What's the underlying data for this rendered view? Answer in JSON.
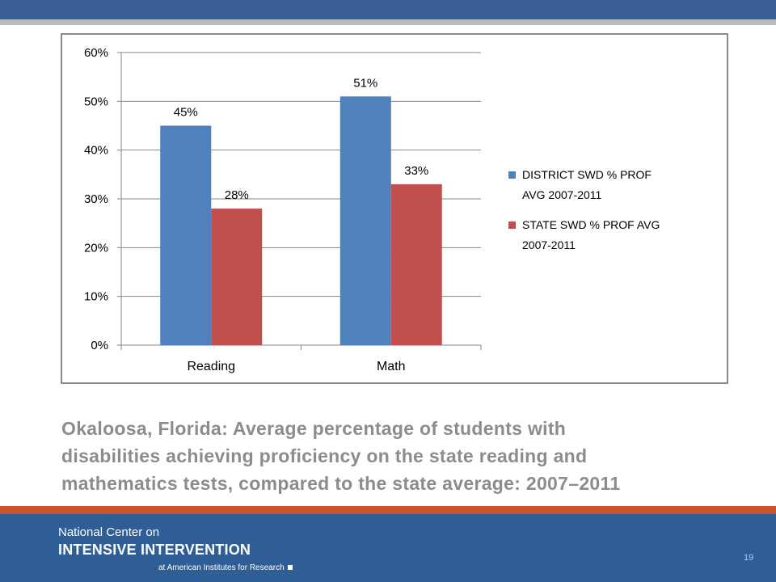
{
  "chart_data": {
    "type": "bar",
    "categories": [
      "Reading",
      "Math"
    ],
    "series": [
      {
        "name": "DISTRICT SWD % PROF AVG 2007-2011",
        "legend_lines": [
          "DISTRICT SWD % PROF",
          "AVG 2007-2011"
        ],
        "values": [
          45,
          51
        ],
        "labels": [
          "45%",
          "51%"
        ],
        "color": "#4f81bd"
      },
      {
        "name": "STATE SWD % PROF AVG 2007-2011",
        "legend_lines": [
          "STATE SWD % PROF AVG",
          "2007-2011"
        ],
        "values": [
          28,
          33
        ],
        "labels": [
          "28%",
          "33%"
        ],
        "color": "#c0504d"
      }
    ],
    "ylim": [
      0,
      60
    ],
    "yticks": [
      0,
      10,
      20,
      30,
      40,
      50,
      60
    ],
    "ytick_labels": [
      "0%",
      "10%",
      "20%",
      "30%",
      "40%",
      "50%",
      "60%"
    ],
    "grid": true,
    "legend_position": "right"
  },
  "caption": {
    "line1": "Okaloosa, Florida: Average percentage of students with",
    "line2": "disabilities achieving proficiency on the state reading and",
    "line3": "mathematics tests, compared to the state average: 2007–2011"
  },
  "footer": {
    "line1": "National Center on",
    "line2": "INTENSIVE INTERVENTION",
    "line3": "at American Institutes for Research",
    "page_number": "19"
  },
  "colors": {
    "top_band": "#3a5f94",
    "footer_band": "#2f5e96",
    "accent_stripe": "#c9552b",
    "caption_text": "#8a8c8f"
  }
}
